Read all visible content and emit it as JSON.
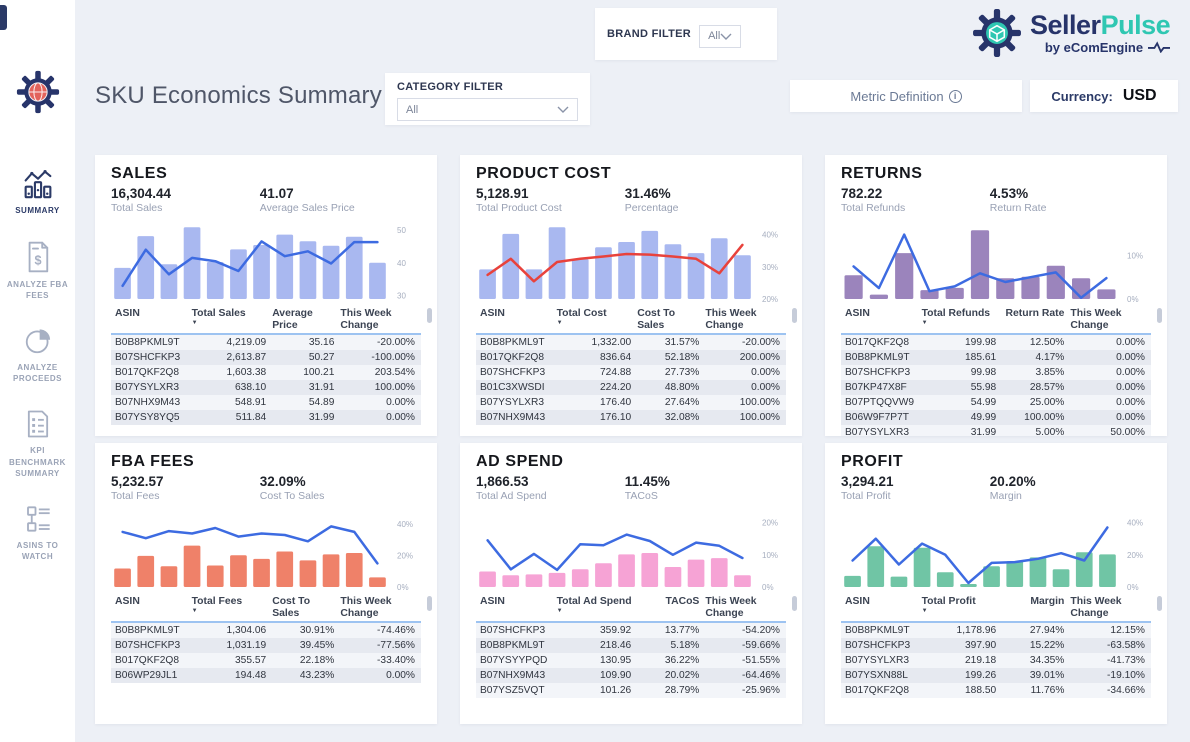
{
  "header": {
    "title": "SKU Economics Summary",
    "category_filter": {
      "label": "CATEGORY FILTER",
      "value": "All"
    },
    "brand_filter": {
      "label": "BRAND FILTER",
      "value": "All"
    },
    "metric_definition": "Metric Definition",
    "currency_label": "Currency:",
    "currency_value": "USD"
  },
  "brand": {
    "name_primary": "Seller",
    "name_secondary": "Pulse",
    "byline": "by eComEngine",
    "navy": "#27346a",
    "teal": "#2fc7b2"
  },
  "icons": {
    "sort_desc": "▼",
    "info": "i",
    "dollar": "$"
  },
  "sidebar": {
    "items": [
      {
        "label": "SUMMARY",
        "icon": "chart-summary-icon",
        "active": true
      },
      {
        "label": "ANALYZE FBA FEES",
        "icon": "invoice-icon",
        "active": false
      },
      {
        "label": "ANALYZE PROCEEDS",
        "icon": "pie-icon",
        "active": false
      },
      {
        "label": "KPI BENCHMARK SUMMARY",
        "icon": "list-icon",
        "active": false
      },
      {
        "label": "ASINS TO WATCH",
        "icon": "tree-icon",
        "active": false
      }
    ]
  },
  "panels": [
    {
      "id": "sales",
      "title": "SALES",
      "kpis": [
        {
          "value": "16,304.44",
          "label": "Total Sales"
        },
        {
          "value": "41.07",
          "label": "Average Sales Price"
        }
      ],
      "chart": {
        "type": "column+line",
        "bar_color": "#a9b8f0",
        "line_color": "#3d6be1",
        "ymin": 29,
        "ymax": 51.5,
        "ticks": [
          {
            "v": 50,
            "label": "50"
          },
          {
            "v": 40,
            "label": "40"
          },
          {
            "v": 30,
            "label": "30"
          }
        ],
        "bars_rel": [
          0.42,
          0.85,
          0.47,
          0.97,
          0.5,
          0.67,
          0.73,
          0.87,
          0.78,
          0.72,
          0.84,
          0.49
        ],
        "line": [
          33,
          44,
          36.5,
          41.5,
          40.5,
          37.5,
          46.5,
          42,
          43.5,
          39.8,
          46.3,
          46.3
        ],
        "note": "bar axis hidden; bars_rel are fractions of plot height; line uses right axis"
      },
      "table": {
        "columns": [
          "ASIN",
          "Total Sales",
          "Average Price",
          "This Week Change"
        ],
        "sorted_column": 1,
        "rows": [
          [
            "B0B8PKML9T",
            "4,219.09",
            "35.16",
            "-20.00%"
          ],
          [
            "B07SHCFKP3",
            "2,613.87",
            "50.27",
            "-100.00%"
          ],
          [
            "B017QKF2Q8",
            "1,603.38",
            "100.21",
            "203.54%"
          ],
          [
            "B07YSYLXR3",
            "638.10",
            "31.91",
            "100.00%"
          ],
          [
            "B07NHX9M43",
            "548.91",
            "54.89",
            "0.00%"
          ],
          [
            "B07YSY8YQ5",
            "511.84",
            "31.99",
            "0.00%"
          ]
        ]
      }
    },
    {
      "id": "product-cost",
      "title": "PRODUCT COST",
      "kpis": [
        {
          "value": "5,128.91",
          "label": "Total Product Cost"
        },
        {
          "value": "31.46%",
          "label": "Percentage"
        }
      ],
      "chart": {
        "type": "column+line",
        "bar_color": "#a9b8f0",
        "line_color": "#e8423c",
        "ymin": 20,
        "ymax": 43,
        "ticks": [
          {
            "v": 40,
            "label": "40%"
          },
          {
            "v": 30,
            "label": "30%"
          },
          {
            "v": 20,
            "label": "20%"
          }
        ],
        "bars_rel": [
          0.4,
          0.88,
          0.4,
          0.97,
          0.54,
          0.7,
          0.77,
          0.92,
          0.74,
          0.62,
          0.82,
          0.59
        ],
        "line": [
          27.5,
          32.5,
          25.5,
          31.5,
          32.5,
          33.2,
          34,
          33.8,
          33.2,
          32.5,
          28,
          36.8
        ],
        "note": "bar axis hidden; bars_rel are fractions of plot height; line uses right axis"
      },
      "table": {
        "columns": [
          "ASIN",
          "Total Cost",
          "Cost To Sales",
          "This Week Change"
        ],
        "sorted_column": 1,
        "rows": [
          [
            "B0B8PKML9T",
            "1,332.00",
            "31.57%",
            "-20.00%"
          ],
          [
            "B017QKF2Q8",
            "836.64",
            "52.18%",
            "200.00%"
          ],
          [
            "B07SHCFKP3",
            "724.88",
            "27.73%",
            "0.00%"
          ],
          [
            "B01C3XWSDI",
            "224.20",
            "48.80%",
            "0.00%"
          ],
          [
            "B07YSYLXR3",
            "176.40",
            "27.64%",
            "100.00%"
          ],
          [
            "B07NHX9M43",
            "176.10",
            "32.08%",
            "100.00%"
          ]
        ]
      }
    },
    {
      "id": "returns",
      "title": "RETURNS",
      "kpis": [
        {
          "value": "782.22",
          "label": "Total Refunds"
        },
        {
          "value": "4.53%",
          "label": "Return Rate"
        }
      ],
      "chart": {
        "type": "column+line",
        "bar_color": "#9b84bc",
        "line_color": "#3d6be1",
        "ymin": 0,
        "ymax": 17,
        "ticks": [
          {
            "v": 10,
            "label": "10%"
          },
          {
            "v": 0,
            "label": "0%"
          }
        ],
        "bars_rel": [
          0.32,
          0.06,
          0.62,
          0.12,
          0.15,
          0.93,
          0.28,
          0.3,
          0.45,
          0.28,
          0.13
        ],
        "line": [
          7.5,
          2.5,
          14.8,
          1.8,
          2.9,
          5.9,
          3.9,
          5.0,
          6.1,
          0.3,
          4.8
        ],
        "note": "bar axis hidden; bars_rel are fractions of plot height; line uses right axis"
      },
      "table": {
        "columns": [
          "ASIN",
          "Total Refunds",
          "Return Rate",
          "This Week Change"
        ],
        "sorted_column": 1,
        "rows": [
          [
            "B017QKF2Q8",
            "199.98",
            "12.50%",
            "0.00%"
          ],
          [
            "B0B8PKML9T",
            "185.61",
            "4.17%",
            "0.00%"
          ],
          [
            "B07SHCFKP3",
            "99.98",
            "3.85%",
            "0.00%"
          ],
          [
            "B07KP47X8F",
            "55.98",
            "28.57%",
            "0.00%"
          ],
          [
            "B07PTQQVW9",
            "54.99",
            "25.00%",
            "0.00%"
          ],
          [
            "B06W9F7P7T",
            "49.99",
            "100.00%",
            "0.00%"
          ],
          [
            "B07YSYLXR3",
            "31.99",
            "5.00%",
            "50.00%"
          ]
        ]
      }
    },
    {
      "id": "fba-fees",
      "title": "FBA FEES",
      "kpis": [
        {
          "value": "5,232.57",
          "label": "Total Fees"
        },
        {
          "value": "32.09%",
          "label": "Cost To Sales"
        }
      ],
      "chart": {
        "type": "column+line",
        "bar_color": "#ef8169",
        "line_color": "#3d6be1",
        "ymin": 0,
        "ymax": 47,
        "ticks": [
          {
            "v": 40,
            "label": "40%"
          },
          {
            "v": 20,
            "label": "20%"
          },
          {
            "v": 0,
            "label": "0%"
          }
        ],
        "bars_rel": [
          0.25,
          0.42,
          0.28,
          0.56,
          0.29,
          0.43,
          0.38,
          0.48,
          0.36,
          0.44,
          0.46,
          0.13
        ],
        "line": [
          35,
          31,
          35.5,
          34,
          37.5,
          32,
          34,
          33,
          29,
          38.5,
          35,
          15
        ],
        "note": "bar axis hidden; bars_rel are fractions of plot height; line uses right axis"
      },
      "table": {
        "columns": [
          "ASIN",
          "Total Fees",
          "Cost To Sales",
          "This Week Change"
        ],
        "sorted_column": 1,
        "rows": [
          [
            "B0B8PKML9T",
            "1,304.06",
            "30.91%",
            "-74.46%"
          ],
          [
            "B07SHCFKP3",
            "1,031.19",
            "39.45%",
            "-77.56%"
          ],
          [
            "B017QKF2Q8",
            "355.57",
            "22.18%",
            "-33.40%"
          ],
          [
            "B06WP29JL1",
            "194.48",
            "43.23%",
            "0.00%"
          ]
        ]
      }
    },
    {
      "id": "ad-spend",
      "title": "AD SPEND",
      "kpis": [
        {
          "value": "1,866.53",
          "label": "Total Ad Spend"
        },
        {
          "value": "11.45%",
          "label": "TACoS"
        }
      ],
      "chart": {
        "type": "column+line",
        "bar_color": "#f6a3d5",
        "line_color": "#3d6be1",
        "ymin": 0,
        "ymax": 23,
        "ticks": [
          {
            "v": 20,
            "label": "20%"
          },
          {
            "v": 10,
            "label": "10%"
          },
          {
            "v": 0,
            "label": "0%"
          }
        ],
        "bars_rel": [
          0.21,
          0.16,
          0.17,
          0.19,
          0.24,
          0.32,
          0.44,
          0.46,
          0.27,
          0.37,
          0.39,
          0.16
        ],
        "line": [
          14.5,
          5.5,
          10.3,
          5.3,
          13.3,
          13,
          16.3,
          14.3,
          10,
          13.8,
          12.8,
          9
        ],
        "note": "bar axis hidden; bars_rel are fractions of plot height; line uses right axis"
      },
      "table": {
        "columns": [
          "ASIN",
          "Total Ad Spend",
          "TACoS",
          "This Week Change"
        ],
        "sorted_column": 1,
        "rows": [
          [
            "B07SHCFKP3",
            "359.92",
            "13.77%",
            "-54.20%"
          ],
          [
            "B0B8PKML9T",
            "218.46",
            "5.18%",
            "-59.66%"
          ],
          [
            "B07YSYYPQD",
            "130.95",
            "36.22%",
            "-51.55%"
          ],
          [
            "B07NHX9M43",
            "109.90",
            "20.02%",
            "-64.46%"
          ],
          [
            "B07YSZ5VQT",
            "101.26",
            "28.79%",
            "-25.96%"
          ]
        ]
      }
    },
    {
      "id": "profit",
      "title": "PROFIT",
      "kpis": [
        {
          "value": "3,294.21",
          "label": "Total Profit"
        },
        {
          "value": "20.20%",
          "label": "Margin"
        }
      ],
      "chart": {
        "type": "column+line",
        "bar_color": "#70c5a5",
        "line_color": "#3d6be1",
        "ymin": 0,
        "ymax": 46,
        "ticks": [
          {
            "v": 40,
            "label": "40%"
          },
          {
            "v": 20,
            "label": "20%"
          },
          {
            "v": 0,
            "label": "0%"
          }
        ],
        "bars_rel": [
          0.15,
          0.55,
          0.14,
          0.53,
          0.2,
          0.04,
          0.28,
          0.35,
          0.4,
          0.24,
          0.47,
          0.44
        ],
        "line": [
          16.5,
          30,
          14,
          27,
          20,
          2.5,
          15,
          15.5,
          17.5,
          21,
          16.5,
          37
        ],
        "note": "bar axis hidden; bars_rel are fractions of plot height; line uses right axis"
      },
      "table": {
        "columns": [
          "ASIN",
          "Total Profit",
          "Margin",
          "This Week Change"
        ],
        "sorted_column": 1,
        "rows": [
          [
            "B0B8PKML9T",
            "1,178.96",
            "27.94%",
            "12.15%"
          ],
          [
            "B07SHCFKP3",
            "397.90",
            "15.22%",
            "-63.58%"
          ],
          [
            "B07YSYLXR3",
            "219.18",
            "34.35%",
            "-41.73%"
          ],
          [
            "B07YSXN88L",
            "199.26",
            "39.01%",
            "-19.10%"
          ],
          [
            "B017QKF2Q8",
            "188.50",
            "11.76%",
            "-34.66%"
          ]
        ]
      }
    }
  ]
}
